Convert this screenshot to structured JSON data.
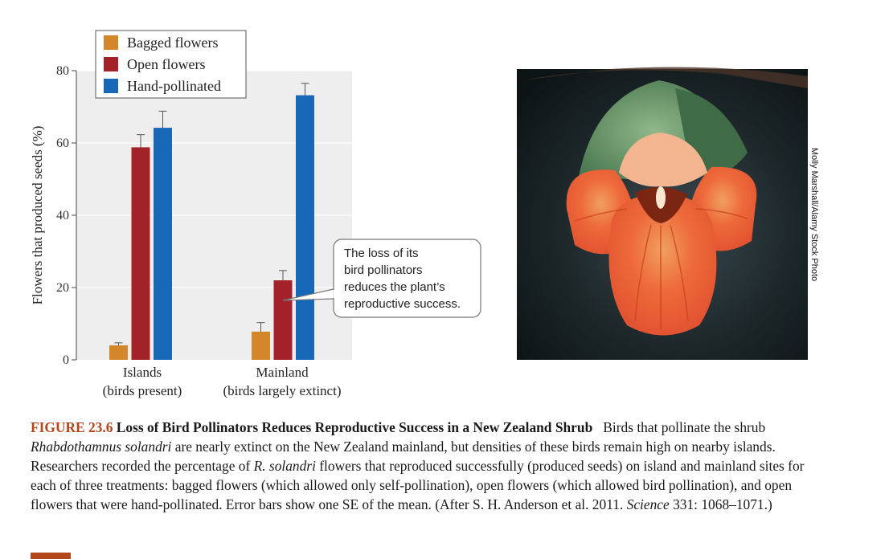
{
  "chart_data": {
    "type": "bar",
    "categories": [
      {
        "line1": "Islands",
        "line2": "(birds present)"
      },
      {
        "line1": "Mainland",
        "line2": "(birds largely extinct)"
      }
    ],
    "series": [
      {
        "name": "Bagged flowers",
        "color": "#d4862a",
        "values": [
          4,
          7.8
        ],
        "errors": [
          0.7,
          2.5
        ]
      },
      {
        "name": "Open flowers",
        "color": "#a3222a",
        "values": [
          58.8,
          22
        ],
        "errors": [
          3.5,
          2.7
        ]
      },
      {
        "name": "Hand-pollinated",
        "color": "#1868b8",
        "values": [
          64.2,
          73.2
        ],
        "errors": [
          4.6,
          3.3
        ]
      }
    ],
    "ylabel": "Flowers that produced seeds (%)",
    "ylim": [
      0,
      80
    ],
    "yticks": [
      0,
      20,
      40,
      60,
      80
    ],
    "grid": true,
    "legend_position": "top",
    "annotation": {
      "lines": [
        "The loss of its",
        "bird pollinators",
        "reduces the plant’s",
        "reproductive success."
      ],
      "target": "Mainland – Open flowers"
    }
  },
  "photo": {
    "description": "Rhabdothamnus solandri flower",
    "credit": "Molly Marshall/Alamy Stock Photo"
  },
  "caption": {
    "number": "FIGURE 23.6",
    "title": "Loss of Bird Pollinators Reduces Reproductive Success in a New Zealand Shrub",
    "seg1": "Birds that pollinate the shrub ",
    "species1": "Rhabdothamnus solandri",
    "seg2": " are nearly extinct on the New Zealand mainland, but densities of these birds remain high on nearby islands. Researchers recorded the percentage of ",
    "species2": "R. solandri",
    "seg3": " flowers that reproduced successfully (produced seeds) on island and mainland sites for each of three treatments: bagged flowers (which allowed only self-pollination), open flowers (which allowed bird pollination), and open flowers that were hand-pollinated. Error bars show one SE of the mean. (After S. H. Anderson et al. 2011. ",
    "journal": "Science",
    "seg4": " 331: 1068–1071.)"
  }
}
